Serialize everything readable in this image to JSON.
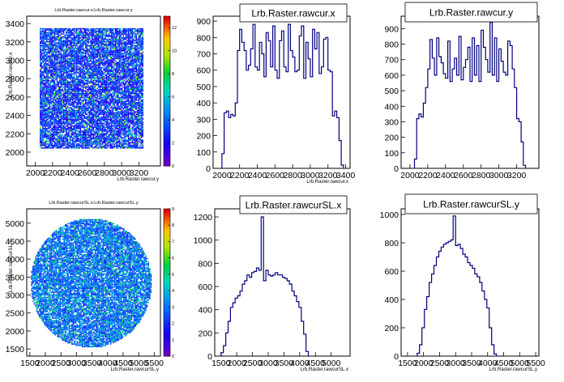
{
  "chart_data": [
    {
      "type": "heatmap",
      "title": "Lrb.Raster.rawcur.x:Lrb.Raster.rawcur.y",
      "xlabel": "Lrb.Raster.rawcur.y",
      "ylabel": "Lrb.Raster.rawcur.x",
      "xlim": [
        1900,
        3450
      ],
      "ylim": [
        1850,
        3480
      ],
      "xticks": [
        "2000",
        "2200",
        "2400",
        "2600",
        "2800",
        "3000",
        "3200"
      ],
      "yticks": [
        "2000",
        "2200",
        "2400",
        "2600",
        "2800",
        "3000",
        "3200",
        "3400"
      ],
      "fill_shape": "square",
      "fill_range": {
        "x": [
          2050,
          3250
        ],
        "y": [
          2050,
          3350
        ]
      },
      "zlim": [
        0,
        13
      ],
      "palette_ticks": [
        "0",
        "2",
        "4",
        "6",
        "8",
        "10",
        "12"
      ]
    },
    {
      "type": "step",
      "title": "Lrb.Raster.rawcur.x",
      "xlabel": "Lrb.Raster.rawcur.x",
      "xlim": [
        1900,
        3450
      ],
      "ylim": [
        0,
        930
      ],
      "xticks": [
        "2000",
        "2200",
        "2400",
        "2600",
        "2800",
        "3000",
        "3200",
        "3400"
      ],
      "yticks": [
        "0",
        "100",
        "200",
        "300",
        "400",
        "500",
        "600",
        "700",
        "800",
        "900"
      ],
      "bin_start": 2000,
      "bin_width": 25,
      "values": [
        90,
        340,
        350,
        310,
        330,
        320,
        400,
        720,
        850,
        770,
        720,
        600,
        630,
        730,
        880,
        620,
        600,
        770,
        700,
        560,
        830,
        780,
        620,
        870,
        600,
        550,
        780,
        840,
        620,
        590,
        880,
        720,
        680,
        590,
        600,
        810,
        870,
        550,
        770,
        670,
        560,
        850,
        730,
        830,
        580,
        620,
        790,
        800,
        600,
        590,
        320,
        350,
        310,
        170,
        20
      ]
    },
    {
      "type": "step",
      "title": "Lrb.Raster.rawcur.y",
      "xlabel": "",
      "xlim": [
        1900,
        3450
      ],
      "ylim": [
        0,
        980
      ],
      "xticks": [
        "2000",
        "2200",
        "2400",
        "2600",
        "2800",
        "3000",
        "3200"
      ],
      "yticks": [
        "0",
        "100",
        "200",
        "300",
        "400",
        "500",
        "600",
        "700",
        "800",
        "900"
      ],
      "bin_start": 2050,
      "bin_width": 25,
      "values": [
        60,
        320,
        350,
        330,
        420,
        520,
        640,
        830,
        710,
        600,
        840,
        720,
        680,
        610,
        580,
        820,
        560,
        640,
        710,
        600,
        850,
        570,
        650,
        700,
        780,
        560,
        840,
        600,
        790,
        560,
        890,
        780,
        700,
        620,
        940,
        600,
        840,
        560,
        770,
        690,
        620,
        600,
        820,
        790,
        640,
        520,
        320,
        300,
        170,
        20
      ]
    },
    {
      "type": "heatmap",
      "title": "Lrb.Raster.rawcurSL.x:Lrb.Raster.rawcurSL.y",
      "xlabel": "Lrb.Raster.rawcurSL.y",
      "ylabel": "Lrb.Raster.rawcurSL.x",
      "xlim": [
        1400,
        5700
      ],
      "ylim": [
        1300,
        5400
      ],
      "xticks": [
        "1500",
        "2000",
        "2500",
        "3000",
        "3500",
        "4000",
        "4500",
        "5000",
        "5500"
      ],
      "yticks": [
        "1500",
        "2000",
        "2500",
        "3000",
        "3500",
        "4000",
        "4500",
        "5000"
      ],
      "fill_shape": "disc",
      "fill_range": {
        "x": [
          1500,
          5400
        ],
        "y": [
          1550,
          5150
        ]
      },
      "zlim": [
        0,
        9
      ],
      "palette_ticks": [
        "0",
        "1",
        "2",
        "3",
        "4",
        "5",
        "6",
        "7",
        "8",
        "9"
      ]
    },
    {
      "type": "step",
      "title": "Lrb.Raster.rawcurSL.x",
      "xlabel": "Lrb.Raster.rawcurSL.x",
      "xlim": [
        1300,
        5600
      ],
      "ylim": [
        0,
        1270
      ],
      "xticks": [
        "1500",
        "2000",
        "2500",
        "3000",
        "3500",
        "4000",
        "4500",
        "5000"
      ],
      "yticks": [
        "0",
        "200",
        "400",
        "600",
        "800",
        "1000",
        "1200"
      ],
      "bin_start": 1500,
      "bin_width": 75,
      "values": [
        30,
        90,
        200,
        300,
        420,
        460,
        500,
        520,
        560,
        620,
        650,
        700,
        680,
        720,
        730,
        760,
        740,
        1200,
        650,
        740,
        700,
        690,
        700,
        720,
        700,
        700,
        680,
        670,
        650,
        620,
        560,
        520,
        470,
        420,
        300,
        190,
        40
      ]
    },
    {
      "type": "step",
      "title": "Lrb.Raster.rawcurSL.y",
      "xlabel": "Lrb.Raster.rawcurSL.y",
      "xlim": [
        1300,
        5600
      ],
      "ylim": [
        0,
        1040
      ],
      "xticks": [
        "1500",
        "2000",
        "2500",
        "3000",
        "3500",
        "4000",
        "4500",
        "5000",
        "5500"
      ],
      "yticks": [
        "0",
        "200",
        "400",
        "600",
        "800",
        "1000"
      ],
      "bin_start": 1800,
      "bin_width": 75,
      "values": [
        20,
        80,
        200,
        330,
        420,
        520,
        580,
        640,
        700,
        740,
        770,
        790,
        800,
        810,
        820,
        990,
        780,
        790,
        760,
        720,
        700,
        660,
        640,
        620,
        580,
        560,
        520,
        460,
        400,
        340,
        200,
        80,
        15
      ]
    }
  ]
}
